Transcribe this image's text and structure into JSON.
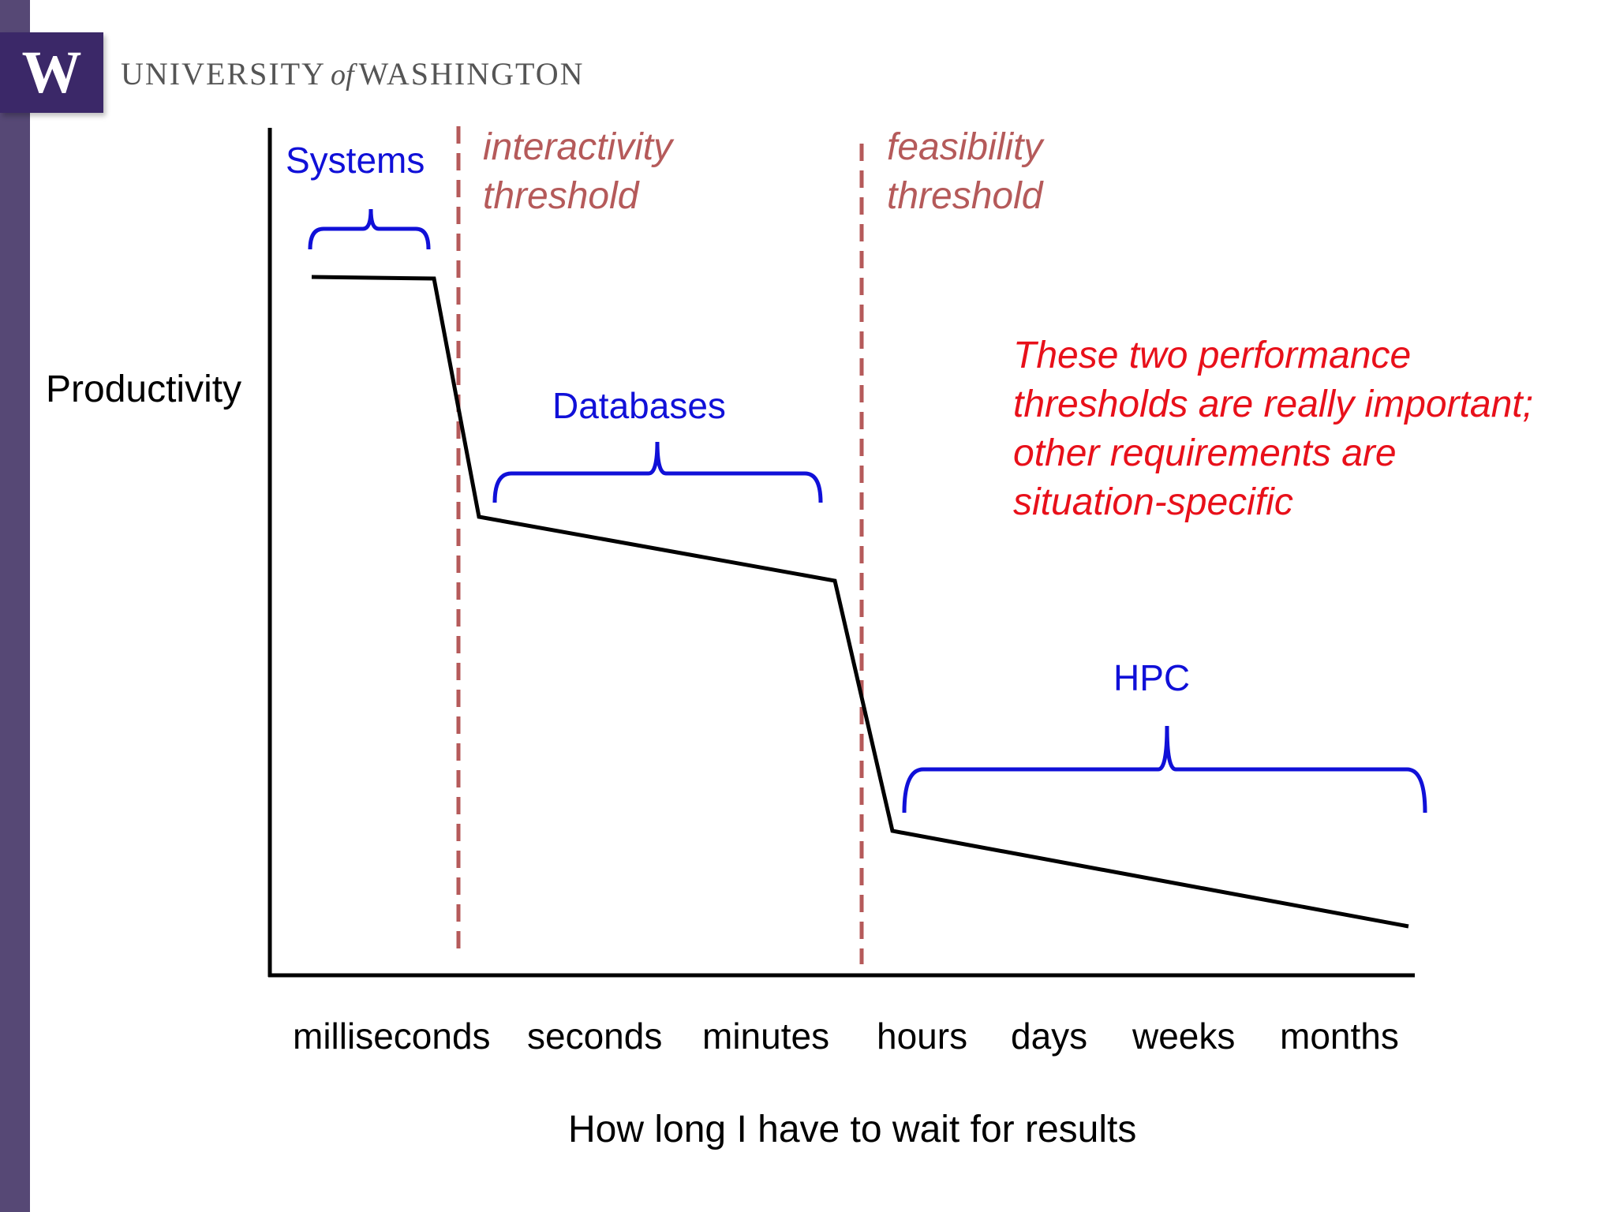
{
  "header": {
    "logo_letter": "W",
    "university_prefix": "UNIVERSITY",
    "university_of": "of",
    "university_suffix": "WASHINGTON"
  },
  "chart_data": {
    "type": "line",
    "title": "",
    "ylabel": "Productivity",
    "xlabel": "How long I have to wait for results",
    "categories": [
      "milliseconds",
      "seconds",
      "minutes",
      "hours",
      "days",
      "weeks",
      "months"
    ],
    "thresholds": [
      {
        "line1": "interactivity",
        "line2": "threshold"
      },
      {
        "line1": "feasibility",
        "line2": "threshold"
      }
    ],
    "ranges": [
      {
        "label": "Systems"
      },
      {
        "label": "Databases"
      },
      {
        "label": "HPC"
      }
    ],
    "annotation": [
      "These two performance",
      "thresholds are really important;",
      "other requirements are",
      "situation-specific"
    ]
  },
  "colors": {
    "purple_bar": "#564875",
    "logo_bg": "#3b2868",
    "bracket_blue": "#1010d8",
    "threshold_red": "#b55a5a",
    "annotation_red": "#e8101a"
  }
}
